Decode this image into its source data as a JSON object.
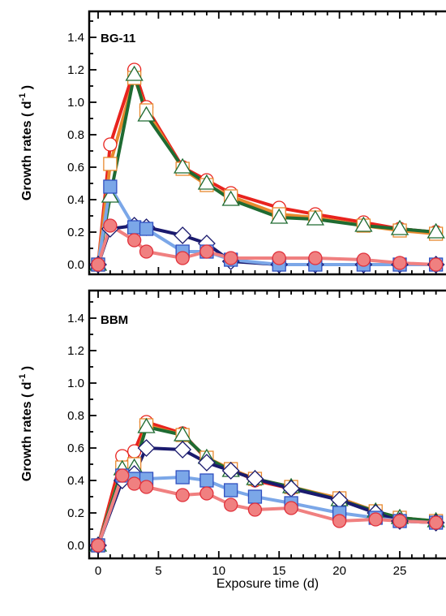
{
  "chart_data": [
    {
      "type": "line",
      "title": "",
      "panel_label": "BG-11",
      "ylabel": "Growth rates ( d",
      "ylabel_sup": "-1",
      "ylabel_close": " )",
      "xlabel": "",
      "xlim": [
        -1,
        28
      ],
      "ylim": [
        -0.05,
        1.55
      ],
      "yticks": [
        0.0,
        0.2,
        0.4,
        0.6,
        0.8,
        1.0,
        1.2,
        1.4
      ],
      "ytick_labels": [
        "0.0",
        "0.2",
        "0.4",
        "0.6",
        "0.8",
        "1.0",
        "1.2",
        "1.4"
      ],
      "xticks": [
        0,
        5,
        10,
        15,
        20,
        25
      ],
      "xtick_labels": [],
      "grid": false,
      "series": [
        {
          "color": "#e8231e",
          "marker": "circle",
          "filled": false,
          "x": [
            0,
            1,
            3,
            4,
            7,
            9,
            11,
            15,
            18,
            22,
            25,
            28
          ],
          "y": [
            0.0,
            0.74,
            1.2,
            0.97,
            0.6,
            0.52,
            0.44,
            0.35,
            0.31,
            0.26,
            0.22,
            0.2
          ]
        },
        {
          "color": "#e8892e",
          "marker": "square",
          "filled": false,
          "x": [
            0,
            1,
            3,
            4,
            7,
            9,
            11,
            15,
            18,
            22,
            25,
            28
          ],
          "y": [
            0.0,
            0.62,
            1.15,
            0.95,
            0.59,
            0.49,
            0.42,
            0.31,
            0.29,
            0.24,
            0.21,
            0.19
          ]
        },
        {
          "color": "#1f6b32",
          "marker": "triangle",
          "filled": false,
          "x": [
            0,
            1,
            3,
            4,
            7,
            9,
            11,
            15,
            18,
            22,
            25,
            28
          ],
          "y": [
            0.0,
            0.42,
            1.17,
            0.92,
            0.6,
            0.5,
            0.4,
            0.29,
            0.28,
            0.24,
            0.22,
            0.2
          ]
        },
        {
          "color": "#1a1a6e",
          "marker": "diamond",
          "filled": false,
          "x": [
            0,
            1,
            3,
            4,
            7,
            9,
            11,
            15,
            18,
            22,
            25,
            28
          ],
          "y": [
            0.0,
            0.22,
            0.24,
            0.23,
            0.18,
            0.13,
            0.02,
            0.0,
            0.0,
            0.0,
            0.0,
            0.0
          ]
        },
        {
          "color": "#7ba7e8",
          "marker": "square",
          "filled": true,
          "x": [
            0,
            1,
            3,
            4,
            7,
            9,
            11,
            15,
            18,
            22,
            25,
            28
          ],
          "y": [
            0.0,
            0.48,
            0.23,
            0.22,
            0.08,
            0.08,
            0.03,
            0.0,
            0.0,
            0.0,
            0.0,
            0.0
          ]
        },
        {
          "color": "#f08080",
          "marker": "circle",
          "filled": true,
          "x": [
            0,
            1,
            3,
            4,
            7,
            9,
            11,
            15,
            18,
            22,
            25,
            28
          ],
          "y": [
            0.0,
            0.24,
            0.15,
            0.08,
            0.04,
            0.08,
            0.04,
            0.04,
            0.04,
            0.03,
            0.01,
            0.0
          ]
        }
      ]
    },
    {
      "type": "line",
      "title": "",
      "panel_label": "BBM",
      "ylabel": "Growth rates ( d",
      "ylabel_sup": "-1",
      "ylabel_close": " )",
      "xlabel": "Exposure time (d)",
      "xlim": [
        -1,
        28
      ],
      "ylim": [
        -0.05,
        1.55
      ],
      "yticks": [
        0.0,
        0.2,
        0.4,
        0.6,
        0.8,
        1.0,
        1.2,
        1.4
      ],
      "ytick_labels": [
        "0.0",
        "0.2",
        "0.4",
        "0.6",
        "0.8",
        "1.0",
        "1.2",
        "1.4"
      ],
      "xticks": [
        0,
        5,
        10,
        15,
        20,
        25
      ],
      "xtick_labels": [
        "0",
        "5",
        "10",
        "15",
        "20",
        "25"
      ],
      "grid": false,
      "series": [
        {
          "color": "#e8231e",
          "marker": "circle",
          "filled": false,
          "x": [
            0,
            2,
            3,
            4,
            7,
            9,
            11,
            13,
            16,
            20,
            23,
            25,
            28
          ],
          "y": [
            0.0,
            0.55,
            0.58,
            0.76,
            0.69,
            0.53,
            0.47,
            0.4,
            0.35,
            0.29,
            0.21,
            0.16,
            0.15
          ]
        },
        {
          "color": "#e8892e",
          "marker": "square",
          "filled": false,
          "x": [
            0,
            2,
            3,
            4,
            7,
            9,
            11,
            13,
            16,
            20,
            23,
            25,
            28
          ],
          "y": [
            0.0,
            0.48,
            0.5,
            0.74,
            0.68,
            0.54,
            0.47,
            0.41,
            0.36,
            0.29,
            0.21,
            0.17,
            0.15
          ]
        },
        {
          "color": "#1f6b32",
          "marker": "triangle",
          "filled": false,
          "x": [
            0,
            2,
            3,
            4,
            7,
            9,
            11,
            13,
            16,
            20,
            23,
            25,
            28
          ],
          "y": [
            0.0,
            0.47,
            0.48,
            0.73,
            0.68,
            0.54,
            0.46,
            0.41,
            0.36,
            0.28,
            0.21,
            0.17,
            0.15
          ]
        },
        {
          "color": "#1a1a6e",
          "marker": "diamond",
          "filled": false,
          "x": [
            0,
            2,
            3,
            4,
            7,
            9,
            11,
            13,
            16,
            20,
            23,
            25,
            28
          ],
          "y": [
            0.0,
            0.4,
            0.44,
            0.6,
            0.59,
            0.51,
            0.46,
            0.41,
            0.35,
            0.28,
            0.2,
            0.15,
            0.14
          ]
        },
        {
          "color": "#7ba7e8",
          "marker": "square",
          "filled": true,
          "x": [
            0,
            2,
            3,
            4,
            7,
            9,
            11,
            13,
            16,
            20,
            23,
            25,
            28
          ],
          "y": [
            0.0,
            0.43,
            0.41,
            0.41,
            0.42,
            0.4,
            0.34,
            0.3,
            0.26,
            0.2,
            0.17,
            0.15,
            0.14
          ]
        },
        {
          "color": "#f08080",
          "marker": "circle",
          "filled": true,
          "x": [
            0,
            2,
            3,
            4,
            7,
            9,
            11,
            13,
            16,
            20,
            23,
            25,
            28
          ],
          "y": [
            0.0,
            0.43,
            0.38,
            0.36,
            0.31,
            0.32,
            0.25,
            0.22,
            0.23,
            0.15,
            0.16,
            0.15,
            0.14
          ]
        }
      ]
    }
  ]
}
